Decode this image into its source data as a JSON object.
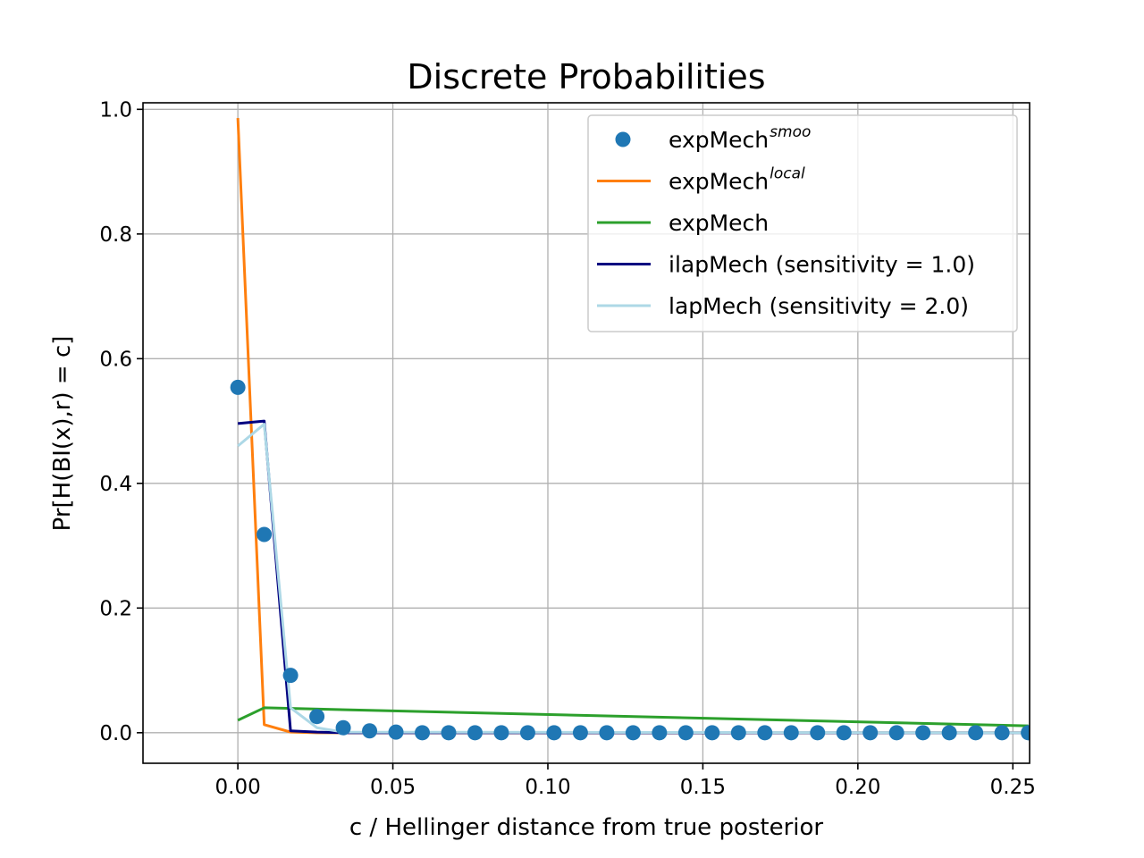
{
  "chart_data": {
    "type": "line",
    "title": "Discrete Probabilities",
    "xlabel": "c / Hellinger distance from true posterior",
    "ylabel": "Pr[H(BI(x),r) = c]",
    "xlim": [
      -0.0306,
      0.2554
    ],
    "ylim": [
      -0.049,
      1.0105
    ],
    "xticks": [
      0.0,
      0.05,
      0.1,
      0.15,
      0.2,
      0.25
    ],
    "xtick_labels": [
      "0.00",
      "0.05",
      "0.10",
      "0.15",
      "0.20",
      "0.25"
    ],
    "yticks": [
      0.0,
      0.2,
      0.4,
      0.6,
      0.8,
      1.0
    ],
    "ytick_labels": [
      "0.0",
      "0.2",
      "0.4",
      "0.6",
      "0.8",
      "1.0"
    ],
    "grid": true,
    "legend_position": "upper right",
    "series": [
      {
        "name": "expMech",
        "name_sup": "smoo",
        "style": "markers",
        "color": "#1f77b4",
        "x": [
          0.0,
          0.0085,
          0.017,
          0.0255,
          0.034,
          0.0425,
          0.051,
          0.0595,
          0.068,
          0.0765,
          0.085,
          0.0935,
          0.102,
          0.1105,
          0.119,
          0.1275,
          0.136,
          0.1445,
          0.153,
          0.1615,
          0.17,
          0.1785,
          0.187,
          0.1955,
          0.204,
          0.2125,
          0.221,
          0.2295,
          0.238,
          0.2465,
          0.255
        ],
        "y": [
          0.554,
          0.318,
          0.092,
          0.026,
          0.008,
          0.003,
          0.001,
          0.0,
          0.0,
          0.0,
          0.0,
          0.0,
          0.0,
          0.0,
          0.0,
          0.0,
          0.0,
          0.0,
          0.0,
          0.0,
          0.0,
          0.0,
          0.0,
          0.0,
          0.0,
          0.0,
          0.0,
          0.0,
          0.0,
          0.0,
          0.0
        ]
      },
      {
        "name": "expMech",
        "name_sup": "local",
        "style": "line",
        "color": "#ff7f0e",
        "x": [
          0.0,
          0.0085,
          0.017,
          0.0255,
          0.034,
          0.255
        ],
        "y": [
          0.986,
          0.013,
          0.001,
          0.0,
          0.0,
          0.0
        ]
      },
      {
        "name": "expMech",
        "name_sup": "",
        "style": "line",
        "color": "#2ca02c",
        "x": [
          0.0,
          0.0085,
          0.255
        ],
        "y": [
          0.02,
          0.04,
          0.011
        ]
      },
      {
        "name": "ilapMech (sensitivity = 1.0)",
        "name_sup": "",
        "style": "line",
        "color": "#000080",
        "x": [
          0.0,
          0.0085,
          0.017,
          0.0255,
          0.034,
          0.255
        ],
        "y": [
          0.496,
          0.5,
          0.003,
          0.001,
          0.0,
          0.0
        ]
      },
      {
        "name": "lapMech (sensitivity = 2.0)",
        "name_sup": "",
        "style": "line",
        "color": "#add8e6",
        "x": [
          0.0,
          0.0085,
          0.017,
          0.0255,
          0.034,
          0.255
        ],
        "y": [
          0.46,
          0.495,
          0.04,
          0.008,
          0.001,
          0.0
        ]
      }
    ]
  }
}
